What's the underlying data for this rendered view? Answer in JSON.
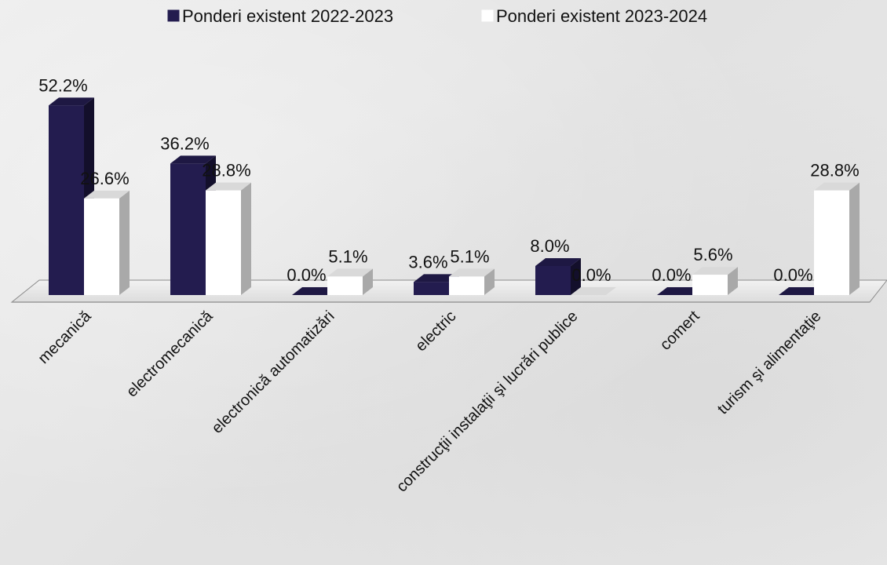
{
  "chart_data": {
    "type": "bar",
    "categories": [
      "mecanică",
      "electromecanică",
      "electronică automatizări",
      "electric",
      "construcţii instalaţii şi lucrări publice",
      "comert",
      "turism şi alimentaţie"
    ],
    "series": [
      {
        "name": "Ponderi existent 2022-2023",
        "values": [
          52.2,
          36.2,
          0.0,
          3.6,
          8.0,
          0.0,
          0.0
        ],
        "labels": [
          "52.2%",
          "36.2%",
          "0.0%",
          "3.6%",
          "8.0%",
          "0.0%",
          "0.0%"
        ],
        "color": "#231c4f"
      },
      {
        "name": "Ponderi existent 2023-2024",
        "values": [
          26.6,
          28.8,
          5.1,
          5.1,
          0.0,
          5.6,
          28.8
        ],
        "labels": [
          "26.6%",
          "28.8%",
          "5.1%",
          "5.1%",
          "0.0%",
          "5.6%",
          "28.8%"
        ],
        "color": "#ffffff"
      }
    ],
    "ylim": [
      0,
      60
    ],
    "grid": false,
    "legend_position": "top",
    "style": "3d-columns"
  }
}
